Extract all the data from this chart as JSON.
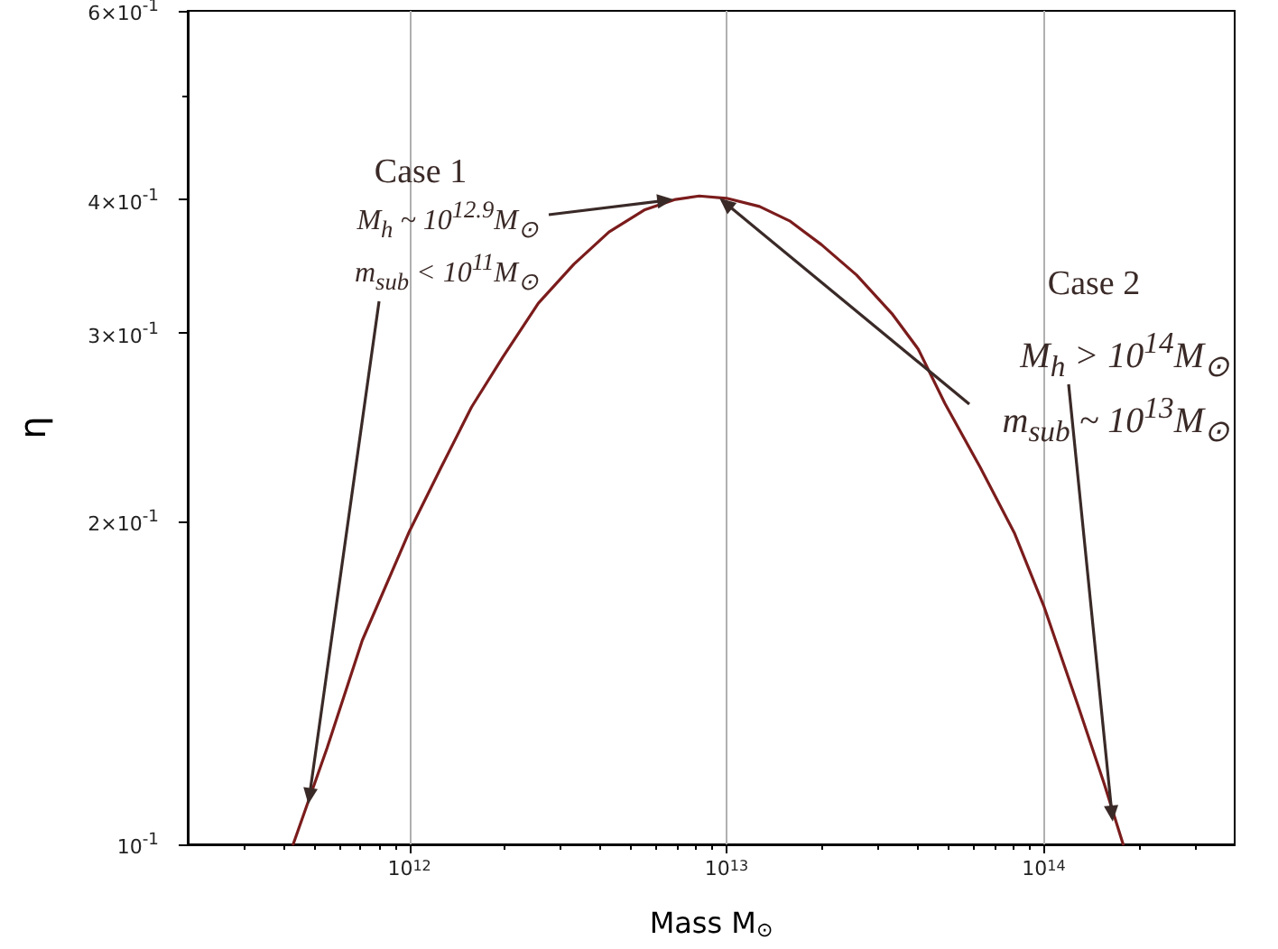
{
  "chart_data": {
    "type": "line",
    "xlabel": "Mass M$_{⊙}$",
    "ylabel": "η",
    "color": "#7b1c1c",
    "marker": "none",
    "log": "xy",
    "grid": "x",
    "x": [
      430000000000.0,
      550000000000.0,
      710000000000.0,
      1000000000000.0,
      1260000000000.0,
      1570000000000.0,
      1970000000000.0,
      2550000000000.0,
      3300000000000.0,
      4260000000000.0,
      5500000000000.0,
      6900000000000.0,
      8200000000000.0,
      10000000000000.0,
      12700000000000.0,
      15800000000000.0,
      19900000000000.0,
      25700000000000.0,
      33200000000000.0,
      40200000000000.0,
      48800000000000.0,
      63000000000000.0,
      81000000000000.0,
      100000000000000.0,
      128000000000000.0,
      155000000000000.0,
      178000000000000.0
    ],
    "values": [
      0.1,
      0.123,
      0.155,
      0.196,
      0.225,
      0.256,
      0.285,
      0.32,
      0.348,
      0.373,
      0.391,
      0.4,
      0.403,
      0.401,
      0.394,
      0.382,
      0.363,
      0.34,
      0.313,
      0.29,
      0.258,
      0.225,
      0.195,
      0.167,
      0.135,
      0.114,
      0.1
    ],
    "xlim": [
      200000000000.0,
      400000000000000.0
    ],
    "xticks": [
      {
        "value": 300000000000.0,
        "label": null
      },
      {
        "value": 400000000000.0,
        "label": null
      },
      {
        "value": 500000000000.0,
        "label": null
      },
      {
        "value": 600000000000.0,
        "label": null
      },
      {
        "value": 700000000000.0,
        "label": null
      },
      {
        "value": 800000000000.0,
        "label": null
      },
      {
        "value": 900000000000.0,
        "label": null
      },
      {
        "value": 1000000000000.0,
        "label": "10$^{12}$"
      },
      {
        "value": 2000000000000.0,
        "label": null
      },
      {
        "value": 3000000000000.0,
        "label": null
      },
      {
        "value": 4000000000000.0,
        "label": null
      },
      {
        "value": 5000000000000.0,
        "label": null
      },
      {
        "value": 6000000000000.0,
        "label": null
      },
      {
        "value": 7000000000000.0,
        "label": null
      },
      {
        "value": 8000000000000.0,
        "label": null
      },
      {
        "value": 9000000000000.0,
        "label": null
      },
      {
        "value": 10000000000000.0,
        "label": "10$^{13}$"
      },
      {
        "value": 20000000000000.0,
        "label": null
      },
      {
        "value": 30000000000000.0,
        "label": null
      },
      {
        "value": 40000000000000.0,
        "label": null
      },
      {
        "value": 50000000000000.0,
        "label": null
      },
      {
        "value": 60000000000000.0,
        "label": null
      },
      {
        "value": 70000000000000.0,
        "label": null
      },
      {
        "value": 80000000000000.0,
        "label": null
      },
      {
        "value": 90000000000000.0,
        "label": null
      },
      {
        "value": 100000000000000.0,
        "label": "10$^{14}$"
      },
      {
        "value": 200000000000000.0,
        "label": null
      },
      {
        "value": 300000000000000.0,
        "label": null
      }
    ],
    "ylim": [
      0.1,
      0.6
    ],
    "yticks": [
      {
        "value": 0.1,
        "label": "10$^{-1}$"
      },
      {
        "value": 0.2,
        "label": "2×10$^{-1}$"
      },
      {
        "value": 0.3,
        "label": "3×10$^{-1}$"
      },
      {
        "value": 0.4,
        "label": "4×10$^{-1}$"
      },
      {
        "value": 0.5,
        "label": null
      },
      {
        "value": 0.6,
        "label": "6×10$^{-1}$"
      }
    ],
    "annotations": [
      "Case 1",
      {
        "text": "M$_{h}$ ~ 10$^{12.9}$M$_{⊙}$",
        "x": 6800000000000.0,
        "y": 0.4
      },
      {
        "text": "m$_{sub}$ < 10$^{11}$M$_{⊙}$",
        "x": 480000000000.0,
        "y": 0.109
      },
      "Case 2",
      {
        "text": "M$_{h}$ > 10$^{14}$M$_{⊙}$",
        "x": 165000000000000.0,
        "y": 0.105
      },
      {
        "text": "m$_{sub}$ ~ 10$^{13}$M$_{⊙}$",
        "x": 9500000000000.0,
        "y": 0.401
      }
    ]
  }
}
